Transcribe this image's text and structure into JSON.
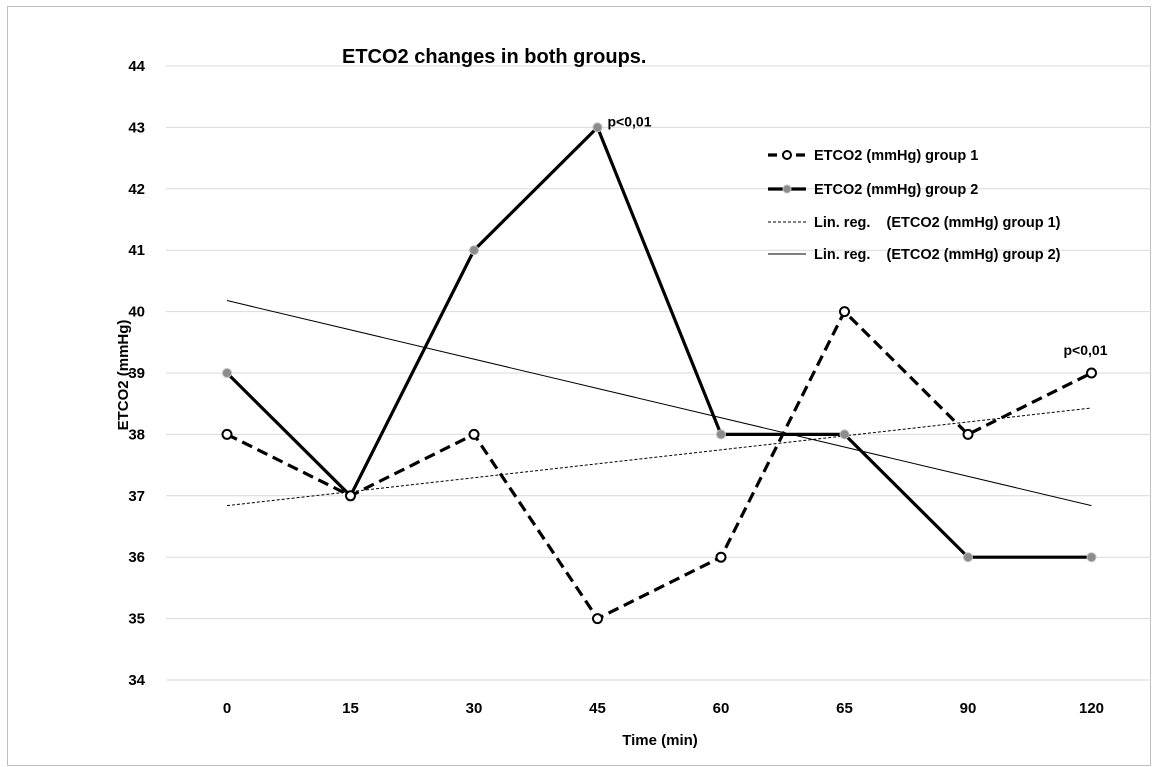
{
  "chart_data": {
    "type": "line",
    "title": "ETCO2 changes in both groups.",
    "xlabel": "Time (min)",
    "ylabel": "ETCO2 (mmHg)",
    "categories": [
      "0",
      "15",
      "30",
      "45",
      "60",
      "65",
      "90",
      "120"
    ],
    "ylim": [
      34,
      44
    ],
    "yticks": [
      "34",
      "35",
      "36",
      "37",
      "38",
      "39",
      "40",
      "41",
      "42",
      "43",
      "44"
    ],
    "grid": true,
    "legend_position": "top-right",
    "series": [
      {
        "name": "ETCO2 (mmHg) group 1",
        "values": [
          38,
          37,
          38,
          35,
          36,
          40,
          38,
          39
        ],
        "line_style": "dashed",
        "marker": "open-circle",
        "color": "#000000"
      },
      {
        "name": "ETCO2 (mmHg) group 2",
        "values": [
          39,
          37,
          41,
          43,
          38,
          38,
          36,
          36
        ],
        "line_style": "solid",
        "marker": "gray-circle",
        "color": "#000000"
      }
    ],
    "trendlines": [
      {
        "name": "Lin. reg.    (ETCO2 (mmHg) group 1)",
        "start": 36.84,
        "end": 38.43,
        "line_style": "dotted"
      },
      {
        "name": "Lin. reg.    (ETCO2 (mmHg) group 2)",
        "start": 40.18,
        "end": 36.84,
        "line_style": "thin-solid"
      }
    ],
    "annotations": [
      {
        "text": "p<0,01",
        "category": "45",
        "value": 43
      },
      {
        "text": "p<0,01",
        "category": "120",
        "value": 39
      }
    ]
  }
}
